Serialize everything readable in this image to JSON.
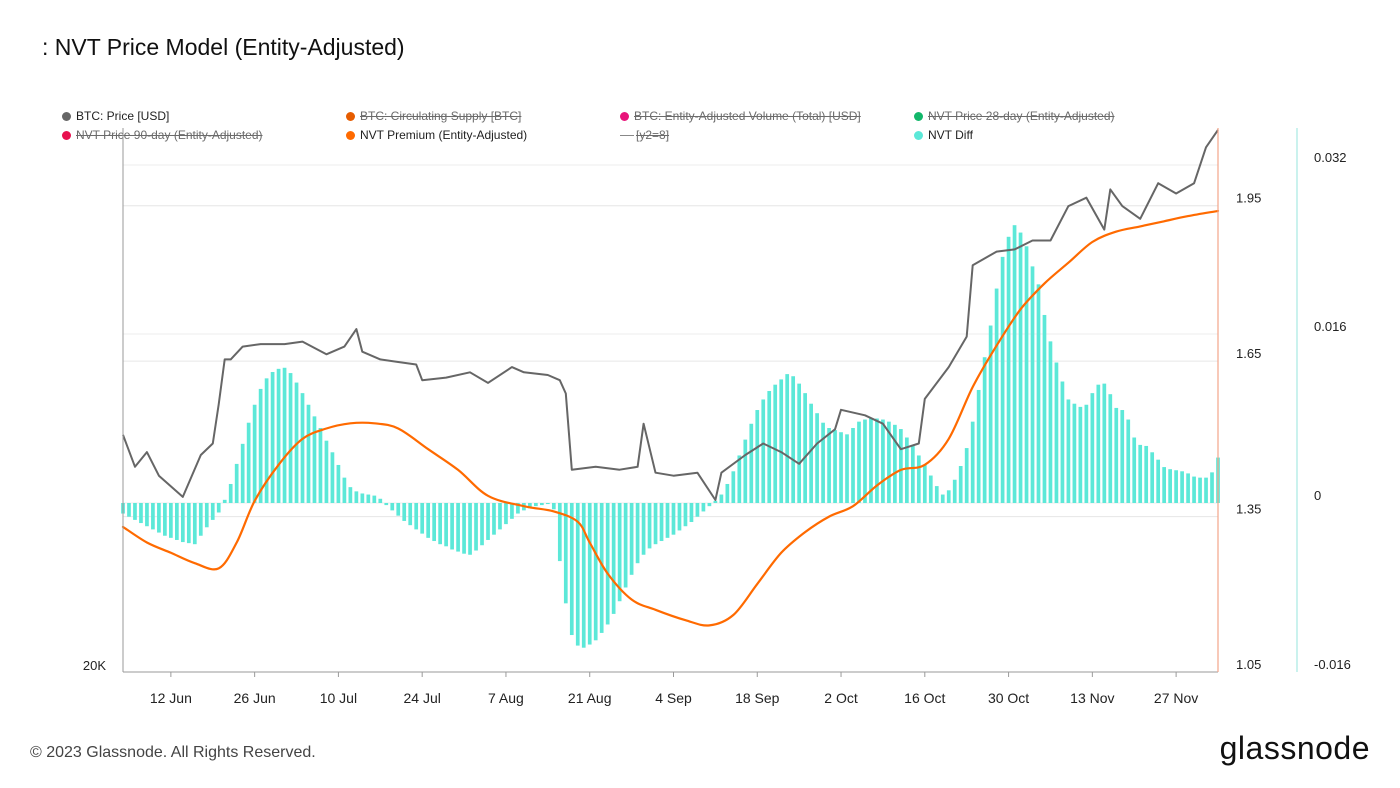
{
  "title": ": NVT Price Model (Entity-Adjusted)",
  "footer": {
    "copyright": "© 2023 Glassnode. All Rights Reserved.",
    "brand": "glassnode"
  },
  "colors": {
    "price": "#666666",
    "premium": "#ff6a00",
    "diff": "#5ce8d8",
    "supply": "#e65c00",
    "volume": "#e8147a",
    "nvt28": "#12b76a",
    "nvt90": "#e8114f",
    "y2": "#888888"
  },
  "legend": [
    {
      "label": "BTC: Price [USD]",
      "color": "#666666",
      "marker": "dot",
      "hidden": false
    },
    {
      "label": "BTC: Circulating Supply [BTC]",
      "color": "#e65c00",
      "marker": "dot",
      "hidden": true
    },
    {
      "label": "BTC: Entity-Adjusted Volume (Total) [USD]",
      "color": "#e8147a",
      "marker": "dot",
      "hidden": true
    },
    {
      "label": "NVT Price 28-day (Entity-Adjusted)",
      "color": "#12b76a",
      "marker": "dot",
      "hidden": true
    },
    {
      "label": "NVT Price 90-day (Entity-Adjusted)",
      "color": "#e8114f",
      "marker": "dot",
      "hidden": true
    },
    {
      "label": "NVT Premium (Entity-Adjusted)",
      "color": "#ff6a00",
      "marker": "dot",
      "hidden": false
    },
    {
      "label": "[y2=8]",
      "color": "#888888",
      "marker": "line",
      "hidden": true
    },
    {
      "label": "NVT Diff",
      "color": "#5ce8d8",
      "marker": "dot",
      "hidden": false
    }
  ],
  "chart_data": {
    "type": "line",
    "x_range": [
      "2023-06-04",
      "2023-12-04"
    ],
    "x_ticks": [
      "12 Jun",
      "26 Jun",
      "10 Jul",
      "24 Jul",
      "7 Aug",
      "21 Aug",
      "4 Sep",
      "18 Sep",
      "2 Oct",
      "16 Oct",
      "30 Oct",
      "13 Nov",
      "27 Nov"
    ],
    "x_tick_dates": [
      "2023-06-12",
      "2023-06-26",
      "2023-07-10",
      "2023-07-24",
      "2023-08-07",
      "2023-08-21",
      "2023-09-04",
      "2023-09-18",
      "2023-10-02",
      "2023-10-16",
      "2023-10-30",
      "2023-11-13",
      "2023-11-27"
    ],
    "axes": {
      "price": {
        "scale": "log",
        "visible_tick_labels": [
          "20K"
        ],
        "range": [
          20000,
          40500
        ]
      },
      "premium": {
        "ticks": [
          1.05,
          1.35,
          1.65,
          1.95
        ],
        "range": [
          1.05,
          2.1
        ]
      },
      "diff": {
        "ticks": [
          -0.016,
          0,
          0.016,
          0.032
        ],
        "range": [
          -0.016,
          0.0355
        ]
      }
    },
    "grid": true,
    "series": [
      {
        "name": "BTC: Price [USD]",
        "axis": "price",
        "dates": [
          "2023-06-04",
          "2023-06-06",
          "2023-06-08",
          "2023-06-10",
          "2023-06-14",
          "2023-06-17",
          "2023-06-19",
          "2023-06-20",
          "2023-06-21",
          "2023-06-22",
          "2023-06-24",
          "2023-06-27",
          "2023-07-01",
          "2023-07-04",
          "2023-07-08",
          "2023-07-11",
          "2023-07-13",
          "2023-07-14",
          "2023-07-17",
          "2023-07-20",
          "2023-07-23",
          "2023-07-24",
          "2023-07-28",
          "2023-08-01",
          "2023-08-04",
          "2023-08-08",
          "2023-08-10",
          "2023-08-14",
          "2023-08-16",
          "2023-08-17",
          "2023-08-18",
          "2023-08-22",
          "2023-08-26",
          "2023-08-29",
          "2023-08-30",
          "2023-09-01",
          "2023-09-04",
          "2023-09-08",
          "2023-09-11",
          "2023-09-12",
          "2023-09-16",
          "2023-09-19",
          "2023-09-22",
          "2023-09-25",
          "2023-09-28",
          "2023-10-01",
          "2023-10-02",
          "2023-10-06",
          "2023-10-09",
          "2023-10-12",
          "2023-10-15",
          "2023-10-16",
          "2023-10-20",
          "2023-10-23",
          "2023-10-24",
          "2023-10-28",
          "2023-10-31",
          "2023-11-03",
          "2023-11-06",
          "2023-11-09",
          "2023-11-12",
          "2023-11-15",
          "2023-11-16",
          "2023-11-18",
          "2023-11-21",
          "2023-11-24",
          "2023-11-27",
          "2023-11-30",
          "2023-12-02",
          "2023-12-04"
        ],
        "values": [
          27200,
          26100,
          26600,
          25800,
          25100,
          26500,
          26900,
          28300,
          30000,
          30000,
          30500,
          30600,
          30600,
          30700,
          30200,
          30500,
          31200,
          30300,
          30000,
          29900,
          29800,
          29200,
          29300,
          29500,
          29100,
          29700,
          29500,
          29400,
          29200,
          28700,
          26000,
          26100,
          26000,
          26100,
          27600,
          25900,
          25800,
          25900,
          25000,
          25900,
          26500,
          26900,
          26600,
          26200,
          26900,
          27400,
          28100,
          27900,
          27600,
          26700,
          26900,
          28500,
          29700,
          30900,
          33900,
          34500,
          34600,
          35000,
          35000,
          36600,
          37000,
          35500,
          37400,
          36600,
          36000,
          37700,
          37200,
          37700,
          39500,
          40400
        ]
      },
      {
        "name": "NVT Premium (Entity-Adjusted)",
        "axis": "premium",
        "dates": [
          "2023-06-04",
          "2023-06-08",
          "2023-06-12",
          "2023-06-16",
          "2023-06-20",
          "2023-06-23",
          "2023-06-26",
          "2023-06-30",
          "2023-07-04",
          "2023-07-08",
          "2023-07-12",
          "2023-07-16",
          "2023-07-20",
          "2023-07-25",
          "2023-07-30",
          "2023-08-04",
          "2023-08-10",
          "2023-08-15",
          "2023-08-19",
          "2023-08-21",
          "2023-08-24",
          "2023-08-28",
          "2023-09-01",
          "2023-09-06",
          "2023-09-10",
          "2023-09-14",
          "2023-09-18",
          "2023-09-22",
          "2023-09-26",
          "2023-09-30",
          "2023-10-04",
          "2023-10-08",
          "2023-10-12",
          "2023-10-16",
          "2023-10-20",
          "2023-10-24",
          "2023-10-28",
          "2023-11-01",
          "2023-11-05",
          "2023-11-09",
          "2023-11-13",
          "2023-11-17",
          "2023-11-21",
          "2023-11-25",
          "2023-11-29",
          "2023-12-04"
        ],
        "values": [
          1.33,
          1.3,
          1.28,
          1.26,
          1.25,
          1.3,
          1.38,
          1.45,
          1.5,
          1.52,
          1.53,
          1.53,
          1.52,
          1.48,
          1.44,
          1.39,
          1.37,
          1.36,
          1.34,
          1.3,
          1.24,
          1.19,
          1.17,
          1.15,
          1.14,
          1.16,
          1.22,
          1.28,
          1.32,
          1.35,
          1.37,
          1.41,
          1.44,
          1.45,
          1.5,
          1.6,
          1.68,
          1.75,
          1.8,
          1.84,
          1.88,
          1.9,
          1.91,
          1.92,
          1.93,
          1.94
        ]
      },
      {
        "name": "NVT Diff",
        "axis": "diff",
        "type": "bar",
        "start_date": "2023-06-04",
        "interval_days": 1,
        "values": [
          -0.001,
          -0.0013,
          -0.0016,
          -0.0019,
          -0.0022,
          -0.0025,
          -0.0028,
          -0.0031,
          -0.0033,
          -0.0035,
          -0.0037,
          -0.0038,
          -0.0039,
          -0.0031,
          -0.0023,
          -0.0016,
          -0.0009,
          0.0003,
          0.0018,
          0.0037,
          0.0056,
          0.0076,
          0.0093,
          0.0108,
          0.0118,
          0.0124,
          0.0127,
          0.0128,
          0.0123,
          0.0114,
          0.0104,
          0.0093,
          0.0082,
          0.0071,
          0.0059,
          0.0048,
          0.0036,
          0.0024,
          0.0015,
          0.0011,
          0.0009,
          0.0008,
          0.0007,
          0.0004,
          -0.0002,
          -0.0007,
          -0.0012,
          -0.0017,
          -0.0021,
          -0.0025,
          -0.0029,
          -0.0033,
          -0.0036,
          -0.0039,
          -0.0041,
          -0.0044,
          -0.0046,
          -0.0048,
          -0.0049,
          -0.0045,
          -0.004,
          -0.0035,
          -0.003,
          -0.0025,
          -0.002,
          -0.0015,
          -0.001,
          -0.0007,
          -0.0005,
          -0.0003,
          -0.0002,
          -0.0001,
          -0.0006,
          -0.0055,
          -0.0095,
          -0.0125,
          -0.0135,
          -0.0137,
          -0.0134,
          -0.013,
          -0.0123,
          -0.0115,
          -0.0105,
          -0.0093,
          -0.008,
          -0.0068,
          -0.0057,
          -0.0049,
          -0.0043,
          -0.0039,
          -0.0036,
          -0.0033,
          -0.003,
          -0.0026,
          -0.0022,
          -0.0018,
          -0.0013,
          -0.0008,
          -0.0003,
          0.0002,
          0.0008,
          0.0018,
          0.003,
          0.0045,
          0.006,
          0.0075,
          0.0088,
          0.0098,
          0.0106,
          0.0112,
          0.0117,
          0.0122,
          0.012,
          0.0113,
          0.0104,
          0.0094,
          0.0085,
          0.0076,
          0.0071,
          0.0069,
          0.0067,
          0.0065,
          0.0071,
          0.0077,
          0.0079,
          0.008,
          0.008,
          0.0079,
          0.0077,
          0.0074,
          0.007,
          0.0062,
          0.0054,
          0.0045,
          0.0036,
          0.0026,
          0.0016,
          0.0008,
          0.0012,
          0.0022,
          0.0035,
          0.0052,
          0.0077,
          0.0107,
          0.0138,
          0.0168,
          0.0203,
          0.0233,
          0.0252,
          0.0263,
          0.0256,
          0.0243,
          0.0224,
          0.0207,
          0.0178,
          0.0153,
          0.0133,
          0.0115,
          0.0098,
          0.0094,
          0.0091,
          0.0093,
          0.0104,
          0.0112,
          0.0113,
          0.0103,
          0.009,
          0.0088,
          0.0079,
          0.0062,
          0.0055,
          0.0054,
          0.0048,
          0.0041,
          0.0034,
          0.0032,
          0.0031,
          0.003,
          0.0028,
          0.0025,
          0.0024,
          0.0024,
          0.0029,
          0.0043
        ]
      }
    ]
  }
}
